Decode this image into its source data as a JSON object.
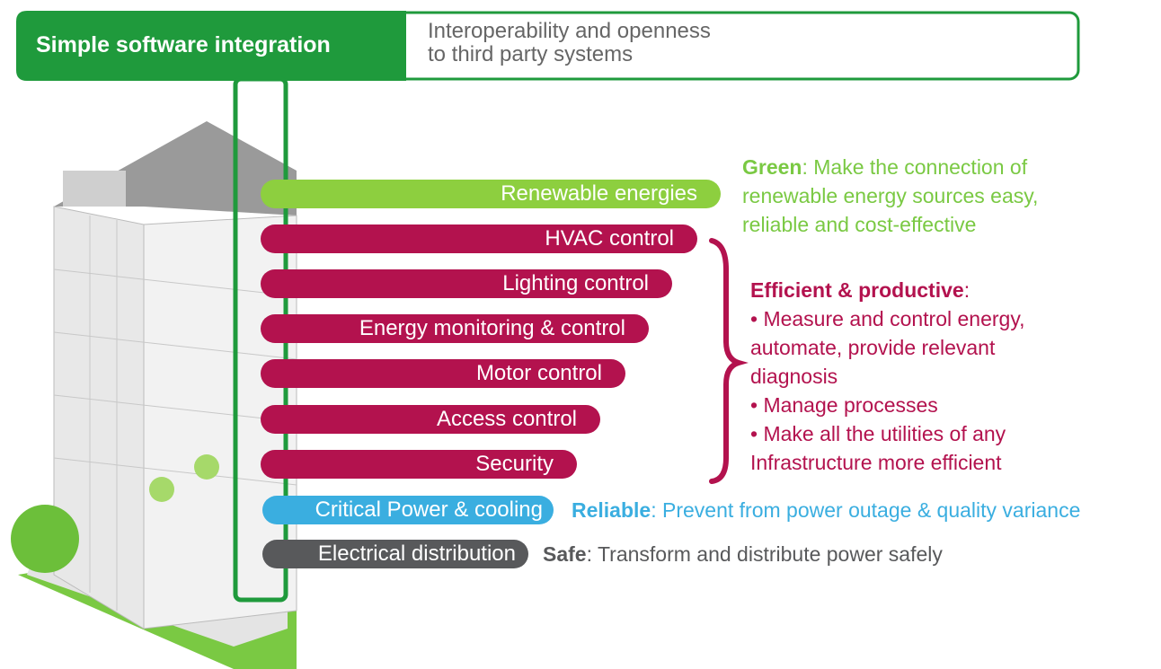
{
  "header": {
    "title": "Simple software integration",
    "description": [
      "Interoperability and openness",
      "to third party systems"
    ]
  },
  "layers": [
    "Renewable energies",
    "HVAC control",
    "Lighting control",
    "Energy monitoring & control",
    "Motor control",
    "Access control",
    "Security",
    "Critical Power & cooling",
    "Electrical distribution"
  ],
  "benefits": {
    "green": {
      "term": "Green",
      "lines": [
        ": Make the connection of",
        "renewable energy sources easy,",
        "reliable and cost-effective"
      ]
    },
    "efficient": {
      "term": "Efficient & productive",
      "lines": [
        ":",
        "• Measure and control energy,",
        "automate, provide relevant",
        "diagnosis",
        "• Manage processes",
        "• Make all the utilities of any",
        "Infrastructure more efficient"
      ]
    },
    "reliable": {
      "term": "Reliable",
      "lines": [
        ": Prevent from power outage & quality variance"
      ]
    },
    "safe": {
      "term": "Safe",
      "lines": [
        ": Transform and distribute power safely"
      ]
    }
  }
}
